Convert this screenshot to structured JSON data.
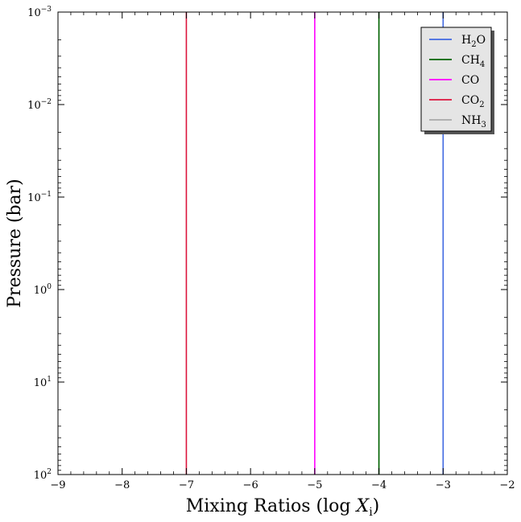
{
  "chart_data": {
    "type": "line",
    "xlabel": "Mixing Ratios (log X",
    "xlabel_sub": "i",
    "xlabel_close": ")",
    "ylabel": "Pressure (bar)",
    "xlim": [
      -9,
      -2
    ],
    "ylim": [
      100,
      0.001
    ],
    "yscale": "log",
    "xticks": [
      -9,
      -8,
      -7,
      -6,
      -5,
      -4,
      -3,
      -2
    ],
    "xtick_labels": [
      "−9",
      "−8",
      "−7",
      "−6",
      "−5",
      "−4",
      "−3",
      "−2"
    ],
    "yticks": [
      {
        "value": 0.001,
        "base": "10",
        "exp": "−3"
      },
      {
        "value": 0.01,
        "base": "10",
        "exp": "−2"
      },
      {
        "value": 0.1,
        "base": "10",
        "exp": "−1"
      },
      {
        "value": 1,
        "base": "10",
        "exp": "0"
      },
      {
        "value": 10,
        "base": "10",
        "exp": "1"
      },
      {
        "value": 100,
        "base": "10",
        "exp": "2"
      }
    ],
    "grid": false,
    "legend_position": "top-right",
    "series": [
      {
        "name": "H",
        "sub": "2",
        "suffix": "O",
        "color": "#4169e1",
        "x": [
          -3,
          -3
        ],
        "y": [
          100,
          0.001
        ]
      },
      {
        "name": "CH",
        "sub": "4",
        "suffix": "",
        "color": "#006400",
        "x": [
          -4,
          -4
        ],
        "y": [
          100,
          0.001
        ]
      },
      {
        "name": "CO",
        "sub": "",
        "suffix": "",
        "color": "#ff00ff",
        "x": [
          -5,
          -5
        ],
        "y": [
          100,
          0.001
        ]
      },
      {
        "name": "CO",
        "sub": "2",
        "suffix": "",
        "color": "#dc143c",
        "x": [
          -7,
          -7
        ],
        "y": [
          100,
          0.001
        ]
      },
      {
        "name": "NH",
        "sub": "3",
        "suffix": "",
        "color": "#a9a9a9",
        "x": [
          -4,
          -4
        ],
        "y": [
          100,
          0.001
        ]
      }
    ]
  }
}
